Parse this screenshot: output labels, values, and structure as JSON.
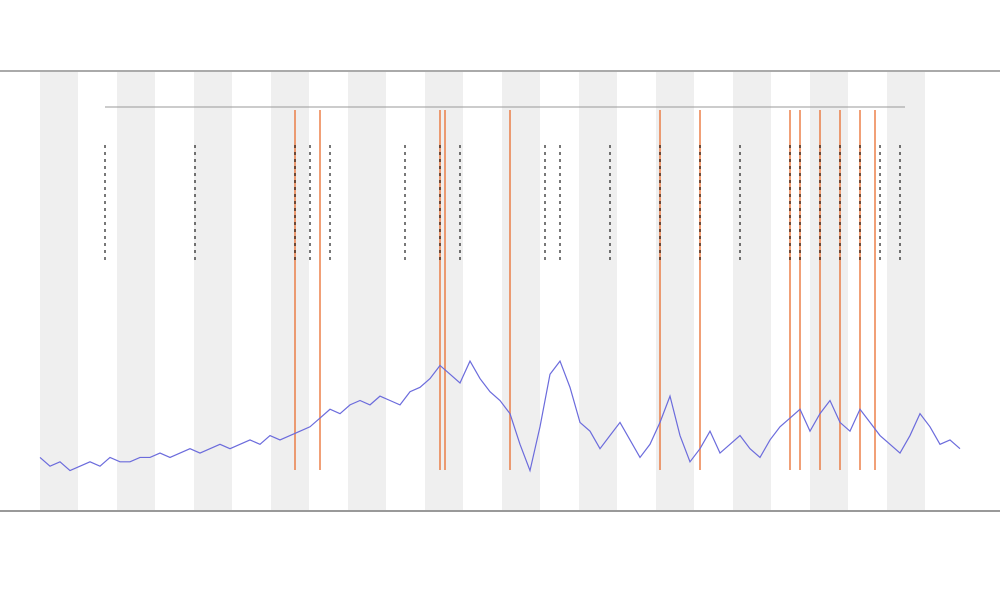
{
  "chart_data": {
    "type": "line",
    "xlim": [
      0,
      920
    ],
    "ylim": [
      0,
      100
    ],
    "x": [
      0,
      10,
      20,
      30,
      40,
      50,
      60,
      70,
      80,
      90,
      100,
      110,
      120,
      130,
      140,
      150,
      160,
      170,
      180,
      190,
      200,
      210,
      220,
      230,
      240,
      250,
      260,
      270,
      280,
      290,
      300,
      310,
      320,
      330,
      340,
      350,
      360,
      370,
      380,
      390,
      400,
      410,
      420,
      430,
      440,
      450,
      460,
      470,
      480,
      490,
      500,
      510,
      520,
      530,
      540,
      550,
      560,
      570,
      580,
      590,
      600,
      610,
      620,
      630,
      640,
      650,
      660,
      670,
      680,
      690,
      700,
      710,
      720,
      730,
      740,
      750,
      760,
      770,
      780,
      790,
      800,
      810,
      820,
      830,
      840,
      850,
      860,
      870,
      880,
      890,
      900,
      910,
      920
    ],
    "series": [
      {
        "color": "#6b6bdc",
        "values": [
          12,
          10,
          11,
          9,
          10,
          11,
          10,
          12,
          11,
          11,
          12,
          12,
          13,
          12,
          13,
          14,
          13,
          14,
          15,
          14,
          15,
          16,
          15,
          17,
          16,
          17,
          18,
          19,
          21,
          23,
          22,
          24,
          25,
          24,
          26,
          25,
          24,
          27,
          28,
          30,
          33,
          31,
          29,
          34,
          30,
          27,
          25,
          22,
          15,
          9,
          19,
          31,
          34,
          28,
          20,
          18,
          14,
          17,
          20,
          16,
          12,
          15,
          20,
          26,
          17,
          11,
          14,
          18,
          13,
          15,
          17,
          14,
          12,
          16,
          19,
          21,
          23,
          18,
          22,
          25,
          20,
          18,
          23,
          20,
          17,
          15,
          13,
          17,
          22,
          19,
          15,
          16,
          14
        ]
      }
    ],
    "events": {
      "color": "#e8601c",
      "x": [
        255,
        280,
        400,
        405,
        470,
        620,
        660,
        750,
        760,
        780,
        800,
        820,
        835
      ]
    },
    "markers": {
      "color": "#000000",
      "x": [
        65,
        155,
        255,
        270,
        290,
        365,
        400,
        420,
        505,
        520,
        570,
        620,
        660,
        700,
        750,
        760,
        780,
        800,
        820,
        840,
        860
      ]
    }
  }
}
